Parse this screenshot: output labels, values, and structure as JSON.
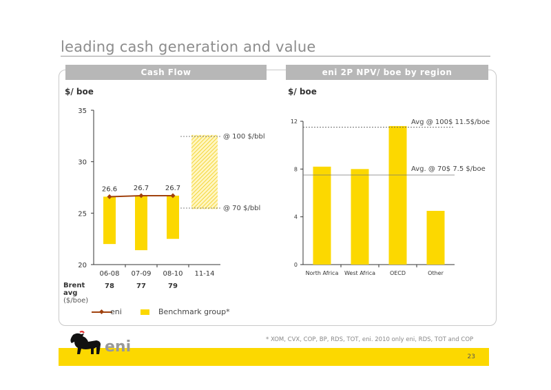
{
  "title": "leading cash generation and value",
  "left_panel": {
    "header": "Cash Flow",
    "unit": "$/ boe"
  },
  "right_panel": {
    "header": "eni 2P NPV/ boe by region",
    "unit": "$/ boe"
  },
  "brent": {
    "label_line1": "Brent",
    "label_line2": "avg",
    "label_line3": "($/boe)",
    "values": [
      "78",
      "77",
      "79"
    ]
  },
  "legend": {
    "eni": "eni",
    "benchmark": "Benchmark group*"
  },
  "annotations": {
    "high": "@ 100 $/bbl",
    "low": "@ 70 $/bbl",
    "avg100": "Avg @ 100$  11.5$/boe",
    "avg70": "Avg. @ 70$  7.5 $/boe"
  },
  "footnote": "*  XOM, CVX, COP, BP, RDS, TOT, eni. 2010 only eni, RDS, TOT and COP",
  "page_number": "23",
  "logo_text": "eni",
  "colors": {
    "bar": "#fcd800",
    "eni_line": "#a0410d",
    "header_bg": "#b7b7b7",
    "footer": "#fcd800"
  },
  "chart_data": [
    {
      "type": "bar",
      "title": "Cash Flow",
      "ylabel": "$/ boe",
      "categories": [
        "06-08",
        "07-09",
        "08-10",
        "11-14"
      ],
      "ylim": [
        20,
        35
      ],
      "yticks": [
        20,
        25,
        30,
        35
      ],
      "series": [
        {
          "name": "Benchmark group*",
          "kind": "range-bar",
          "ranges": [
            [
              22,
              26.6
            ],
            [
              21.4,
              26.7
            ],
            [
              22.5,
              26.7
            ],
            [
              25.4,
              32.6
            ]
          ]
        },
        {
          "name": "eni",
          "kind": "line",
          "values": [
            26.6,
            26.7,
            26.7,
            null
          ],
          "labels": [
            "26.6",
            "26.7",
            "26.7",
            ""
          ]
        }
      ]
    },
    {
      "type": "bar",
      "title": "eni 2P NPV/ boe by region",
      "ylabel": "$/ boe",
      "categories": [
        "North Africa",
        "West Africa",
        "OECD",
        "Other"
      ],
      "values": [
        8.2,
        8.0,
        11.6,
        4.5
      ],
      "ylim": [
        0,
        12
      ],
      "yticks": [
        0,
        4,
        8,
        12
      ],
      "reference_lines": [
        11.5,
        7.5
      ]
    }
  ]
}
